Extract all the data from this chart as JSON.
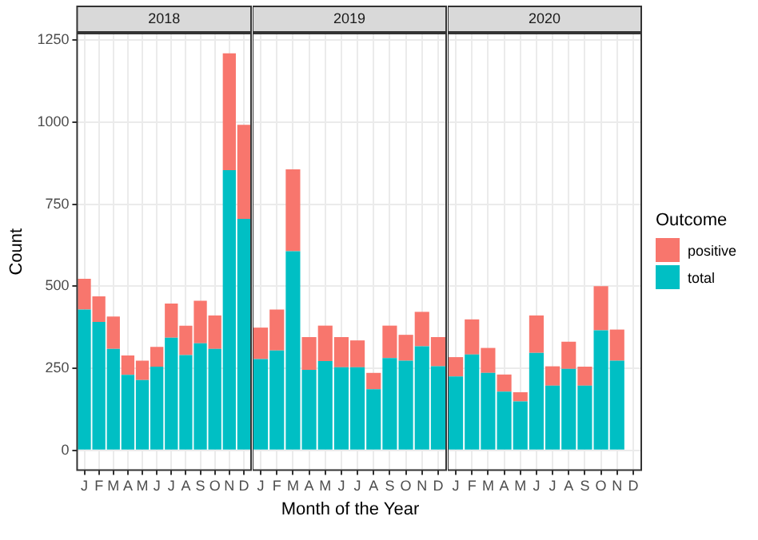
{
  "chart_data": [
    {
      "type": "bar",
      "title": "2018",
      "ylabel": "Count",
      "legend": "right",
      "legend_title": "Outcome",
      "categories": [
        "J",
        "F",
        "M",
        "A",
        "M",
        "J",
        "J",
        "A",
        "S",
        "O",
        "N",
        "D"
      ],
      "stacked": true,
      "ylim": [
        -60,
        1270
      ],
      "yticks": [
        0,
        250,
        500,
        750,
        1000,
        1250
      ],
      "grid": true,
      "series": [
        {
          "name": "total",
          "color": "#00bfc4",
          "values": [
            429,
            391,
            309,
            230,
            214,
            255,
            343,
            290,
            326,
            309,
            854,
            705
          ]
        },
        {
          "name": "positive",
          "color": "#f8766d",
          "values": [
            94,
            78,
            99,
            59,
            59,
            60,
            104,
            90,
            130,
            102,
            356,
            287
          ]
        }
      ]
    },
    {
      "type": "bar",
      "title": "2019",
      "xlabel": "Month of the Year",
      "legend": "right",
      "categories": [
        "J",
        "F",
        "M",
        "A",
        "M",
        "J",
        "J",
        "A",
        "S",
        "O",
        "N",
        "D"
      ],
      "stacked": true,
      "ylim": [
        -60,
        1270
      ],
      "yticks": [
        0,
        250,
        500,
        750,
        1000,
        1250
      ],
      "grid": true,
      "tick_labels": "x",
      "series": [
        {
          "name": "total",
          "color": "#00bfc4",
          "values": [
            278,
            304,
            607,
            245,
            272,
            253,
            253,
            186,
            281,
            273,
            317,
            256
          ]
        },
        {
          "name": "positive",
          "color": "#f8766d",
          "values": [
            96,
            125,
            249,
            100,
            108,
            92,
            82,
            50,
            99,
            79,
            105,
            89
          ]
        }
      ]
    },
    {
      "type": "bar",
      "title": "2020",
      "categories": [
        "J",
        "F",
        "M",
        "A",
        "M",
        "J",
        "J",
        "A",
        "S",
        "O",
        "N",
        "D"
      ],
      "stacked": true,
      "ylim": [
        -60,
        1270
      ],
      "yticks": [
        0,
        250,
        500,
        750,
        1000,
        1250
      ],
      "grid": true,
      "tick_labels": "x",
      "legend": "right",
      "series": [
        {
          "name": "total",
          "color": "#00bfc4",
          "values": [
            225,
            292,
            236,
            179,
            149,
            297,
            197,
            248,
            197,
            366,
            273,
            null
          ]
        },
        {
          "name": "positive",
          "color": "#f8766d",
          "values": [
            59,
            107,
            76,
            52,
            28,
            114,
            59,
            83,
            58,
            134,
            95,
            null
          ]
        }
      ]
    }
  ]
}
